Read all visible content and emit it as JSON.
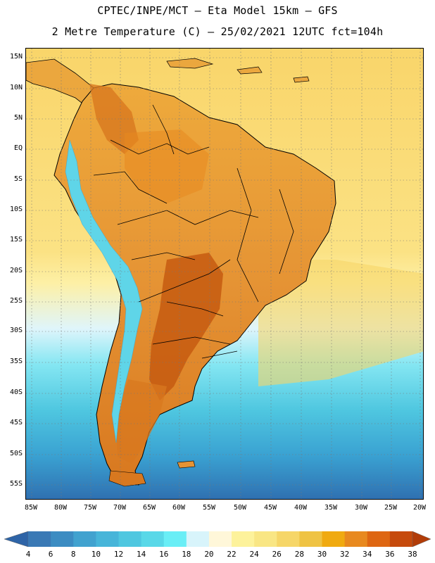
{
  "header": {
    "line1": "CPTEC/INPE/MCT –  Eta Model 15km – GFS",
    "line2": "2 Metre Temperature (C) – 25/02/2021 12UTC fct=104h"
  },
  "axes": {
    "lat_labels": [
      "15N",
      "10N",
      "5N",
      "EQ",
      "5S",
      "10S",
      "15S",
      "20S",
      "25S",
      "30S",
      "35S",
      "40S",
      "45S",
      "50S",
      "55S"
    ],
    "lon_labels": [
      "85W",
      "80W",
      "75W",
      "70W",
      "65W",
      "60W",
      "55W",
      "50W",
      "45W",
      "40W",
      "35W",
      "30W",
      "25W",
      "20W"
    ]
  },
  "colorbar": {
    "labels": [
      "4",
      "6",
      "8",
      "10",
      "12",
      "14",
      "16",
      "18",
      "20",
      "22",
      "24",
      "26",
      "28",
      "30",
      "32",
      "34",
      "36",
      "38"
    ],
    "colors": [
      "#3a79b5",
      "#3c8cc2",
      "#41a2cf",
      "#47b5d9",
      "#4fc7e0",
      "#59d8e8",
      "#69eef6",
      "#d8f4fb",
      "#fff7d9",
      "#fdf29b",
      "#f9e684",
      "#f6d668",
      "#efc343",
      "#f0aa10",
      "#e8891f",
      "#de6612",
      "#c64a0c"
    ],
    "under_color": "#2e64a7",
    "over_color": "#b23c08"
  },
  "map": {
    "ocean_color": "#f8d56a",
    "ocean_south_colors": [
      "#fdf0a4",
      "#dff5fb",
      "#82e6f2",
      "#4fc7e0",
      "#3aa2d2",
      "#2f6fb0"
    ],
    "land_colors": [
      "#f0b445",
      "#e89c3a",
      "#d8781f",
      "#c65a10"
    ],
    "andes_colors": [
      "#7ae2ee",
      "#4fc7e0"
    ]
  }
}
